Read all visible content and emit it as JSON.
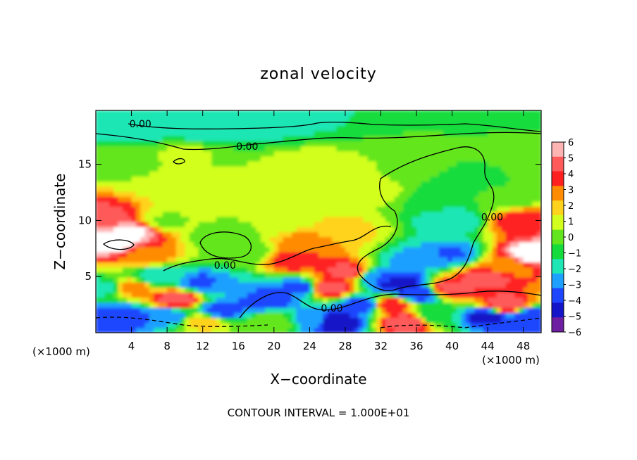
{
  "chart_data": {
    "type": "heatmap",
    "title": "zonal velocity",
    "xlabel": "X−coordinate",
    "ylabel": "Z−coordinate",
    "x_unit_left": "(×1000 m)",
    "x_unit_right": "(×1000 m)",
    "x_ticks": [
      "4",
      "8",
      "12",
      "16",
      "20",
      "24",
      "28",
      "32",
      "36",
      "40",
      "44",
      "48"
    ],
    "x_tick_values": [
      4,
      8,
      12,
      16,
      20,
      24,
      28,
      32,
      36,
      40,
      44,
      48
    ],
    "y_ticks": [
      "5",
      "10",
      "15"
    ],
    "y_tick_values": [
      5,
      10,
      15
    ],
    "xlim": [
      0,
      50
    ],
    "ylim": [
      0,
      19.8
    ],
    "footer": "CONTOUR INTERVAL = 1.000E+01",
    "contour_labels": [
      {
        "text": "0.00",
        "x": 5,
        "y": 18.6
      },
      {
        "text": "0.00",
        "x": 17,
        "y": 16.6
      },
      {
        "text": "0.00",
        "x": 14.5,
        "y": 6
      },
      {
        "text": "0.00",
        "x": 26.5,
        "y": 2.2
      },
      {
        "text": "0.00",
        "x": 44.5,
        "y": 10.3
      }
    ],
    "colorbar": {
      "labels": [
        "6",
        "5",
        "4",
        "3",
        "2",
        "1",
        "0",
        "−1",
        "−2",
        "−3",
        "−4",
        "−5",
        "−6"
      ],
      "colors": [
        "#ffb4b4",
        "#ff5a5a",
        "#ff2020",
        "#ff8c00",
        "#ffd21e",
        "#d2ff1e",
        "#64e61e",
        "#14dc3c",
        "#1ee6b4",
        "#1ea0ff",
        "#1e46ff",
        "#1414c8",
        "#6e1ea0"
      ]
    },
    "field_anchors": [
      {
        "x": 25,
        "y": 19.6,
        "v": -2.2
      },
      {
        "x": 5,
        "y": 18.3,
        "v": -2.4
      },
      {
        "x": 12,
        "y": 18.1,
        "v": -2.2
      },
      {
        "x": 20,
        "y": 18.3,
        "v": -1.6
      },
      {
        "x": 32,
        "y": 18.8,
        "v": -0.8
      },
      {
        "x": 44,
        "y": 18.6,
        "v": -1.3
      },
      {
        "x": 2,
        "y": 15,
        "v": 0.3
      },
      {
        "x": 10,
        "y": 16,
        "v": 0.6
      },
      {
        "x": 24,
        "y": 15,
        "v": 1.2
      },
      {
        "x": 32,
        "y": 12.5,
        "v": 0.7
      },
      {
        "x": 15,
        "y": 12,
        "v": 0.6
      },
      {
        "x": 8,
        "y": 10,
        "v": 0.4
      },
      {
        "x": 25,
        "y": 12,
        "v": 1.3
      },
      {
        "x": 28,
        "y": 9,
        "v": 1.8
      },
      {
        "x": 24,
        "y": 8,
        "v": 3.2
      },
      {
        "x": 22,
        "y": 6.5,
        "v": 4.5
      },
      {
        "x": 17,
        "y": 7,
        "v": -0.4
      },
      {
        "x": 14,
        "y": 8.5,
        "v": -0.3
      },
      {
        "x": 38,
        "y": 12,
        "v": -1.2
      },
      {
        "x": 40,
        "y": 10,
        "v": -2.2
      },
      {
        "x": 43,
        "y": 14,
        "v": -0.8
      },
      {
        "x": 40,
        "y": 7,
        "v": -3.6
      },
      {
        "x": 36,
        "y": 6.5,
        "v": -2.8
      },
      {
        "x": 32,
        "y": 5,
        "v": -3.5
      },
      {
        "x": 46,
        "y": 12,
        "v": -0.4
      },
      {
        "x": 48,
        "y": 10,
        "v": 4.5
      },
      {
        "x": 48.8,
        "y": 7,
        "v": 7
      },
      {
        "x": 46,
        "y": 6,
        "v": 2.5
      },
      {
        "x": 44,
        "y": 5,
        "v": 5
      },
      {
        "x": 40,
        "y": 4,
        "v": 5
      },
      {
        "x": 36,
        "y": 3.5,
        "v": -4.5
      },
      {
        "x": 34,
        "y": 4.5,
        "v": -5.5
      },
      {
        "x": 28,
        "y": 5.5,
        "v": 4.8
      },
      {
        "x": 26,
        "y": 4,
        "v": 5.5
      },
      {
        "x": 23,
        "y": 4,
        "v": -4
      },
      {
        "x": 19,
        "y": 3,
        "v": -4.5
      },
      {
        "x": 15,
        "y": 4,
        "v": -2.5
      },
      {
        "x": 12,
        "y": 4.5,
        "v": -3.8
      },
      {
        "x": 9,
        "y": 3,
        "v": 5.2
      },
      {
        "x": 7,
        "y": 5,
        "v": -2.2
      },
      {
        "x": 4,
        "y": 4,
        "v": 3
      },
      {
        "x": 1,
        "y": 4,
        "v": -2
      },
      {
        "x": 2,
        "y": 8,
        "v": 7
      },
      {
        "x": 4,
        "y": 9,
        "v": 6.5
      },
      {
        "x": 1,
        "y": 10.2,
        "v": 5
      },
      {
        "x": 5.5,
        "y": 7,
        "v": 3.2
      },
      {
        "x": 3,
        "y": 1.5,
        "v": -4.5
      },
      {
        "x": 8,
        "y": 1.5,
        "v": -3.5
      },
      {
        "x": 12,
        "y": 1,
        "v": 2
      },
      {
        "x": 14,
        "y": 2,
        "v": -4
      },
      {
        "x": 20,
        "y": 1,
        "v": 0.5
      },
      {
        "x": 24,
        "y": 1.2,
        "v": -3
      },
      {
        "x": 27,
        "y": 1,
        "v": -5.5
      },
      {
        "x": 30,
        "y": 2.5,
        "v": -4.5
      },
      {
        "x": 33,
        "y": 2.5,
        "v": 4.5
      },
      {
        "x": 35,
        "y": 1,
        "v": 5.5
      },
      {
        "x": 38,
        "y": 1.5,
        "v": -1.5
      },
      {
        "x": 44,
        "y": 1.5,
        "v": -5
      },
      {
        "x": 46,
        "y": 2.5,
        "v": 5.5
      },
      {
        "x": 49,
        "y": 1.5,
        "v": -4.5
      },
      {
        "x": 10,
        "y": 13,
        "v": 0.8
      },
      {
        "x": 20,
        "y": 10,
        "v": 0.5
      },
      {
        "x": 35,
        "y": 16,
        "v": 0.5
      },
      {
        "x": 45,
        "y": 17,
        "v": 0.3
      },
      {
        "x": 49,
        "y": 15,
        "v": 0.2
      }
    ]
  }
}
